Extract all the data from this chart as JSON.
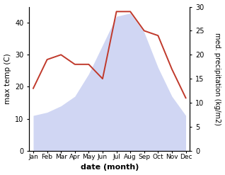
{
  "months": [
    "Jan",
    "Feb",
    "Mar",
    "Apr",
    "May",
    "Jun",
    "Jul",
    "Aug",
    "Sep",
    "Oct",
    "Nov",
    "Dec"
  ],
  "temp": [
    11,
    12,
    14,
    17,
    24,
    33,
    42,
    43,
    37,
    26,
    17,
    11
  ],
  "precip": [
    13,
    19,
    20,
    18,
    18,
    15,
    29,
    29,
    25,
    24,
    17,
    11
  ],
  "temp_fill_color": "#bcc5ee",
  "precip_color": "#c0392b",
  "xlabel": "date (month)",
  "ylabel_left": "max temp (C)",
  "ylabel_right": "med. precipitation (kg/m2)",
  "ylim_left": [
    0,
    45
  ],
  "ylim_right": [
    0,
    30
  ],
  "yticks_left": [
    0,
    10,
    20,
    30,
    40
  ],
  "yticks_right": [
    0,
    5,
    10,
    15,
    20,
    25,
    30
  ]
}
